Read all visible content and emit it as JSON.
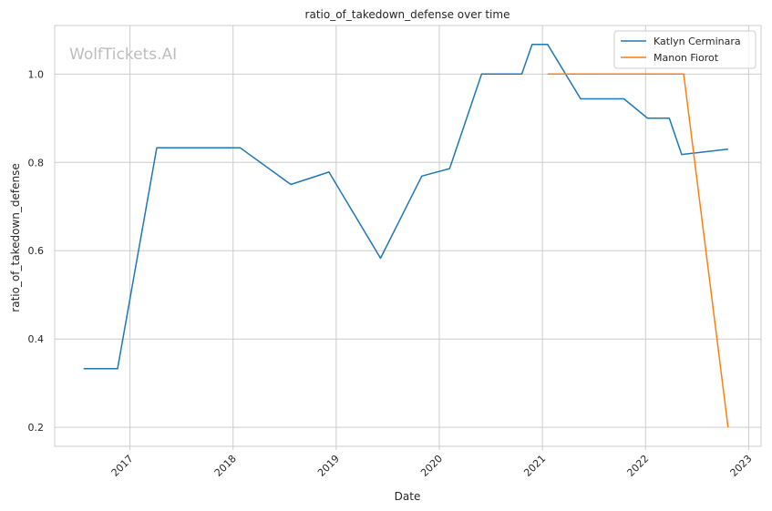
{
  "chart_data": {
    "type": "line",
    "title": "ratio_of_takedown_defense over time",
    "xlabel": "Date",
    "ylabel": "ratio_of_takedown_defense",
    "watermark": "WolfTickets.AI",
    "xlim": [
      2016.27,
      2023.12
    ],
    "ylim": [
      0.157,
      1.11
    ],
    "x_ticks": [
      2017,
      2018,
      2019,
      2020,
      2021,
      2022,
      2023
    ],
    "x_tick_labels": [
      "2017",
      "2018",
      "2019",
      "2020",
      "2021",
      "2022",
      "2023"
    ],
    "y_ticks": [
      0.2,
      0.4,
      0.6,
      0.8,
      1.0
    ],
    "y_tick_labels": [
      "0.2",
      "0.4",
      "0.6",
      "0.8",
      "1.0"
    ],
    "grid": true,
    "legend": {
      "position": "top-right"
    },
    "series": [
      {
        "name": "Katlyn Cerminara",
        "color": "#1f77b4",
        "points": [
          [
            2016.55,
            0.333
          ],
          [
            2016.88,
            0.333
          ],
          [
            2017.26,
            0.833
          ],
          [
            2018.07,
            0.833
          ],
          [
            2018.56,
            0.75
          ],
          [
            2018.93,
            0.778
          ],
          [
            2019.43,
            0.583
          ],
          [
            2019.83,
            0.769
          ],
          [
            2020.1,
            0.786
          ],
          [
            2020.41,
            1.0
          ],
          [
            2020.8,
            1.0
          ],
          [
            2020.9,
            1.067
          ],
          [
            2021.05,
            1.067
          ],
          [
            2021.37,
            0.944
          ],
          [
            2021.79,
            0.944
          ],
          [
            2022.02,
            0.9
          ],
          [
            2022.23,
            0.9
          ],
          [
            2022.35,
            0.818
          ],
          [
            2022.8,
            0.83
          ]
        ]
      },
      {
        "name": "Manon Fiorot",
        "color": "#ff7f0e",
        "points": [
          [
            2021.05,
            1.0
          ],
          [
            2022.37,
            1.0
          ],
          [
            2022.8,
            0.2
          ]
        ]
      }
    ]
  }
}
